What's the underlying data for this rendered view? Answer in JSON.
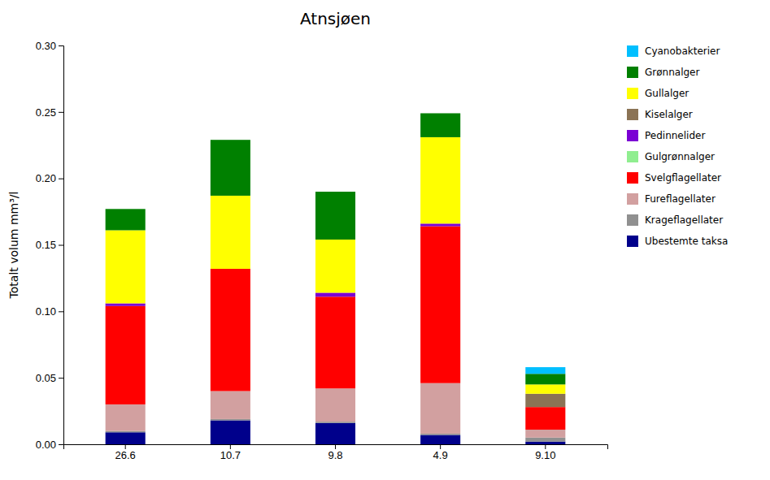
{
  "chart_data": {
    "type": "bar",
    "stacked": true,
    "title": "Atnsjøen",
    "ylabel": "Totalt volum mm³/l",
    "categories": [
      "26.6",
      "10.7",
      "9.8",
      "4.9",
      "9.10"
    ],
    "ylim": [
      0,
      0.3
    ],
    "yticks": [
      {
        "value": 0.0,
        "label": "0.00"
      },
      {
        "value": 0.05,
        "label": "0.05"
      },
      {
        "value": 0.1,
        "label": "0.10"
      },
      {
        "value": 0.15,
        "label": "0.15"
      },
      {
        "value": 0.2,
        "label": "0.20"
      },
      {
        "value": 0.25,
        "label": "0.25"
      },
      {
        "value": 0.3,
        "label": "0.30"
      }
    ],
    "grid": false,
    "legend": "right",
    "series": [
      {
        "name": "Ubestemte taksa",
        "color": "#00008B",
        "values": [
          0.009,
          0.018,
          0.016,
          0.007,
          0.002
        ]
      },
      {
        "name": "Krageflagellater",
        "color": "#909090",
        "values": [
          0.001,
          0.001,
          0.001,
          0.001,
          0.003
        ]
      },
      {
        "name": "Fureflagellater",
        "color": "#D2A0A0",
        "values": [
          0.02,
          0.021,
          0.025,
          0.038,
          0.006
        ]
      },
      {
        "name": "Svelgflagellater",
        "color": "#FF0000",
        "values": [
          0.074,
          0.092,
          0.069,
          0.118,
          0.017
        ]
      },
      {
        "name": "Gulgrønnalger",
        "color": "#90EE90",
        "values": [
          0.0,
          0.0,
          0.0,
          0.0,
          0.0
        ]
      },
      {
        "name": "Pedinnelider",
        "color": "#7B00D4",
        "values": [
          0.002,
          0.0,
          0.003,
          0.002,
          0.0
        ]
      },
      {
        "name": "Kiselalger",
        "color": "#8B7355",
        "values": [
          0.0,
          0.0,
          0.0,
          0.0,
          0.01
        ]
      },
      {
        "name": "Gullalger",
        "color": "#FFFF00",
        "values": [
          0.055,
          0.055,
          0.04,
          0.065,
          0.007
        ]
      },
      {
        "name": "Grønnalger",
        "color": "#008000",
        "values": [
          0.016,
          0.042,
          0.036,
          0.018,
          0.008
        ]
      },
      {
        "name": "Cyanobakterier",
        "color": "#00BFFF",
        "values": [
          0.0,
          0.0,
          0.0,
          0.0,
          0.005
        ]
      }
    ]
  }
}
